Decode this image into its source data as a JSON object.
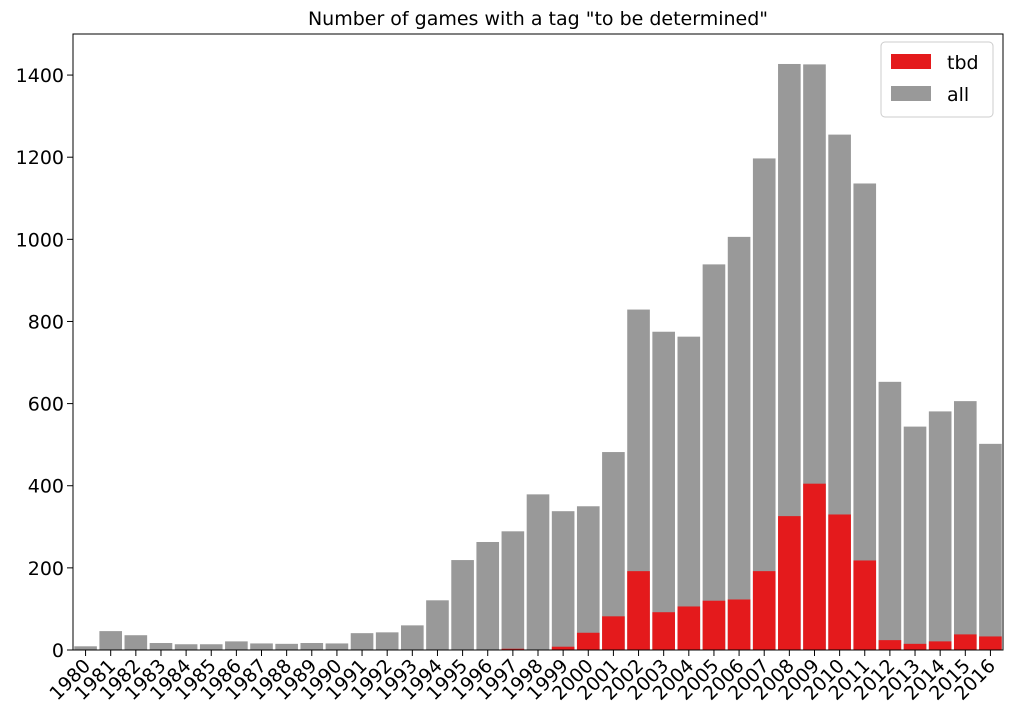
{
  "chart_data": {
    "type": "bar",
    "title": "Number of games with a tag \"to be determined\"",
    "xlabel": "",
    "ylabel": "",
    "ylim": [
      0,
      1500
    ],
    "yticks": [
      0,
      200,
      400,
      600,
      800,
      1000,
      1200,
      1400
    ],
    "grid": false,
    "legend_position": "top-right",
    "bar_mode": "overlay",
    "categories": [
      "1980",
      "1981",
      "1982",
      "1983",
      "1984",
      "1985",
      "1986",
      "1987",
      "1988",
      "1989",
      "1990",
      "1991",
      "1992",
      "1993",
      "1994",
      "1995",
      "1996",
      "1997",
      "1998",
      "1999",
      "2000",
      "2001",
      "2002",
      "2003",
      "2004",
      "2005",
      "2006",
      "2007",
      "2008",
      "2009",
      "2010",
      "2011",
      "2012",
      "2013",
      "2014",
      "2015",
      "2016"
    ],
    "series": [
      {
        "name": "tbd",
        "color": "#e41a1c",
        "values": [
          0,
          0,
          0,
          0,
          0,
          0,
          0,
          0,
          0,
          0,
          0,
          0,
          0,
          0,
          0,
          0,
          0,
          3,
          0,
          8,
          42,
          82,
          192,
          92,
          106,
          120,
          123,
          192,
          326,
          405,
          330,
          218,
          24,
          15,
          21,
          38,
          33
        ]
      },
      {
        "name": "all",
        "color": "#999999",
        "values": [
          9,
          46,
          36,
          17,
          14,
          14,
          21,
          16,
          15,
          17,
          16,
          41,
          43,
          60,
          121,
          219,
          263,
          289,
          379,
          338,
          350,
          482,
          829,
          775,
          763,
          939,
          1006,
          1197,
          1427,
          1426,
          1255,
          1136,
          653,
          544,
          581,
          606,
          502
        ]
      }
    ]
  }
}
